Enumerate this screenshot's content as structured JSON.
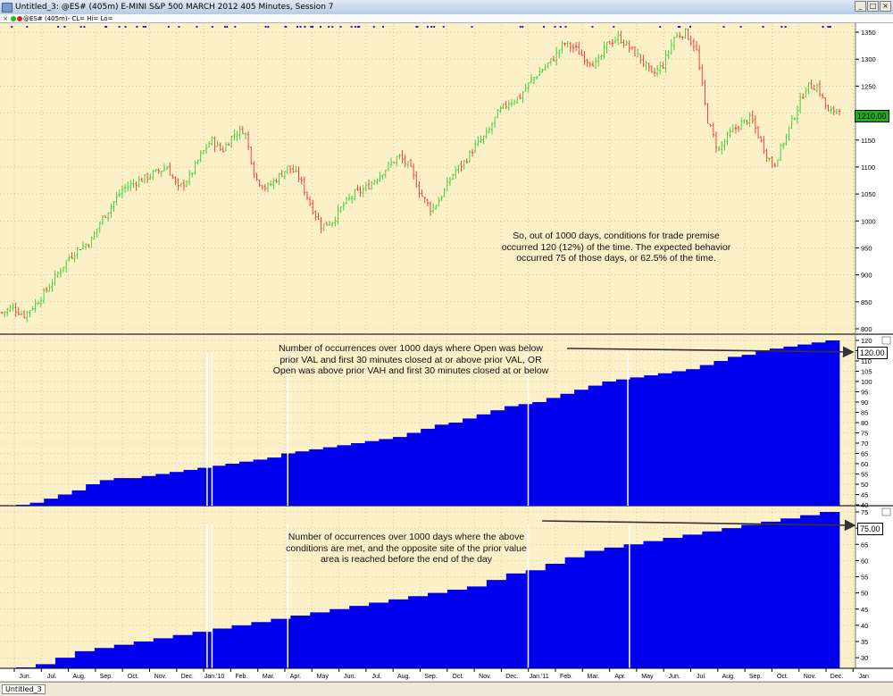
{
  "window": {
    "title": "Untitled_3: @ES# (405m) E-MINI S&P 500 MARCH 2012 405 Minutes, Session 7"
  },
  "infobar": {
    "label": "@ES# (405m)- CL= Hi= Lo="
  },
  "status": {
    "tab_label": "Untitled_3"
  },
  "colors": {
    "background": "#fbf0c8",
    "bar_fill": "#0000ee",
    "up": "#33cc33",
    "down": "#ee3333",
    "tag_green": "#22aa22"
  },
  "annotations": {
    "price_note": [
      "So, out of 1000 days, conditions for trade premise",
      "occurred 120 (12%) of the time.  The expected behavior",
      "occurred 75 of those days, or 62.5% of the time."
    ],
    "panel2_note": [
      "Number of occurrences over 1000 days where Open was below",
      "prior VAL and first 30 minutes closed at or above prior VAL, OR",
      "Open was above prior VAH and first 30 minutes closed at or below"
    ],
    "panel3_note": [
      "Number of occurrences over 1000 days where the above",
      "conditions are met, and the opposite site of the prior value",
      "area is reached before the end of the day"
    ]
  },
  "chart_data": [
    {
      "type": "candlestick",
      "series": [
        {
          "name": "@ES# (405m)"
        }
      ],
      "x": [
        "Jun.",
        "Jul.",
        "Aug.",
        "Sep.",
        "Oct.",
        "Nov.",
        "Dec.",
        "Jan.'10",
        "Feb.",
        "Mar.",
        "Apr.",
        "May",
        "Jun.",
        "Jul.",
        "Aug.",
        "Sep.",
        "Oct.",
        "Nov.",
        "Dec.",
        "Jan.'11",
        "Feb.",
        "Mar.",
        "Apr.",
        "May",
        "Jun.",
        "Jul.",
        "Aug.",
        "Sep.",
        "Oct.",
        "Nov.",
        "Dec.",
        "Jan"
      ],
      "close_path": [
        830,
        840,
        825,
        845,
        870,
        900,
        930,
        950,
        960,
        1000,
        1030,
        1060,
        1070,
        1080,
        1090,
        1100,
        1060,
        1080,
        1120,
        1150,
        1130,
        1160,
        1170,
        1080,
        1060,
        1080,
        1100,
        1080,
        1030,
        990,
        1000,
        1030,
        1050,
        1060,
        1080,
        1100,
        1120,
        1100,
        1050,
        1020,
        1050,
        1090,
        1110,
        1140,
        1160,
        1200,
        1220,
        1230,
        1260,
        1280,
        1300,
        1330,
        1320,
        1300,
        1290,
        1330,
        1340,
        1320,
        1300,
        1270,
        1290,
        1340,
        1350,
        1320,
        1190,
        1130,
        1160,
        1180,
        1190,
        1140,
        1100,
        1150,
        1200,
        1250,
        1250,
        1200,
        1210
      ],
      "ylim": [
        800,
        1360
      ],
      "yticks": [
        800,
        850,
        900,
        950,
        1000,
        1050,
        1100,
        1150,
        1200,
        1250,
        1300,
        1350
      ],
      "last_value": "1210.00"
    },
    {
      "type": "step",
      "series": [
        {
          "name": "Number of occurrences over 1000 days where Open was below prior VAL and first 30 minutes closed at or above prior VAL, OR Open was above prior VAH and first 30 minutes closed at or below"
        }
      ],
      "values": [
        40,
        41,
        43,
        45,
        47,
        50,
        52,
        53,
        53,
        54,
        55,
        56,
        57,
        58,
        59,
        60,
        61,
        62,
        63,
        65,
        66,
        67,
        68,
        69,
        70,
        71,
        72,
        73,
        75,
        77,
        79,
        80,
        82,
        84,
        86,
        88,
        89,
        90,
        92,
        94,
        96,
        98,
        100,
        101,
        102,
        103,
        104,
        105,
        106,
        108,
        110,
        112,
        113,
        115,
        116,
        117,
        118,
        119,
        120
      ],
      "ylim": [
        40,
        120
      ],
      "yticks": [
        40,
        45,
        50,
        55,
        60,
        65,
        70,
        75,
        80,
        85,
        90,
        95,
        100,
        105,
        110,
        115,
        120
      ],
      "last_value": "120.00"
    },
    {
      "type": "step",
      "series": [
        {
          "name": "Number of occurrences over 1000 days where the above conditions are met, and the opposite site of the prior value area is reached before the end of the day"
        }
      ],
      "values": [
        27,
        28,
        30,
        32,
        33,
        34,
        35,
        36,
        37,
        38,
        39,
        40,
        41,
        42,
        43,
        44,
        45,
        46,
        47,
        48,
        49,
        50,
        51,
        52,
        54,
        56,
        57,
        59,
        61,
        63,
        64,
        65,
        66,
        67,
        68,
        69,
        70,
        71,
        72,
        73,
        74,
        75
      ],
      "ylim": [
        27,
        75
      ],
      "yticks": [
        30,
        35,
        40,
        45,
        50,
        55,
        60,
        65,
        70,
        75
      ],
      "last_value": "75.00"
    }
  ]
}
